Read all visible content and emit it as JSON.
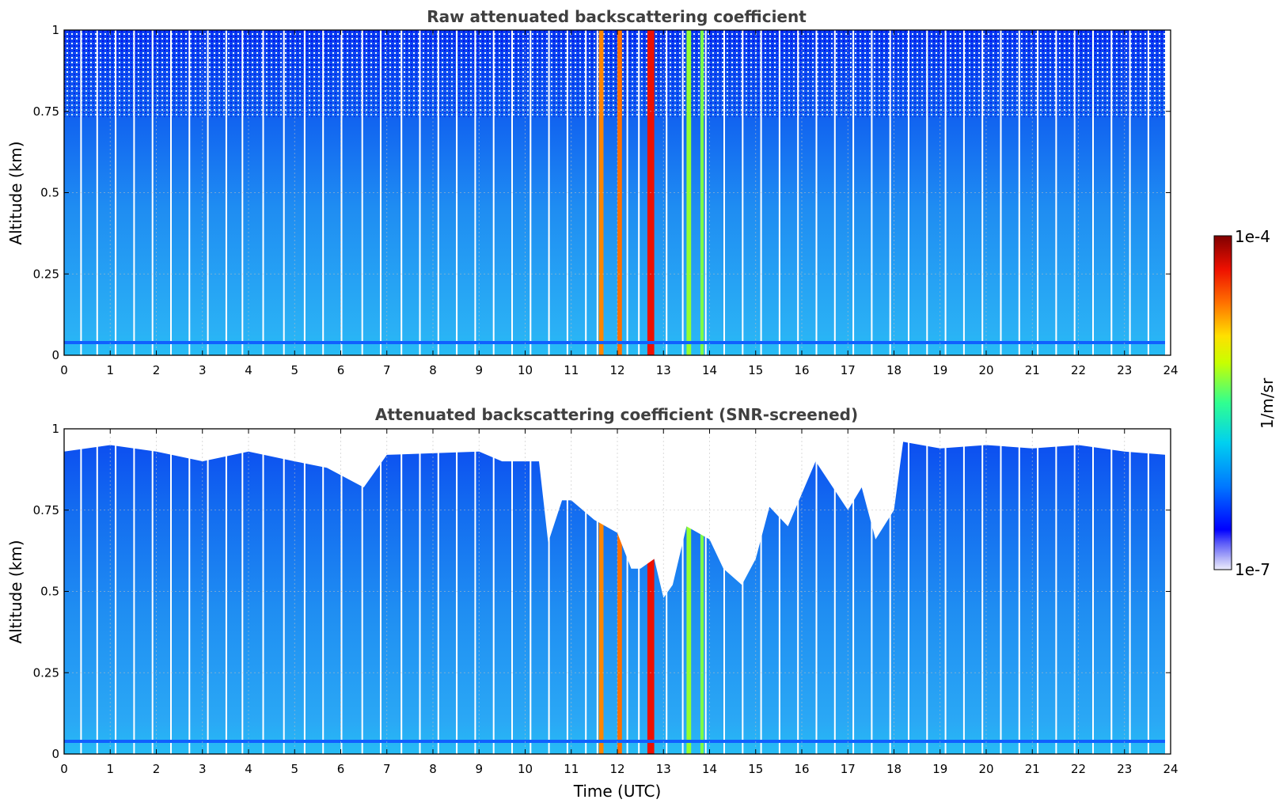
{
  "chart_data": [
    {
      "type": "heatmap",
      "title": "Raw attenuated backscattering coefficient",
      "xlabel": "",
      "ylabel": "Altitude (km)",
      "xlim": [
        0,
        24
      ],
      "ylim": [
        0,
        1
      ],
      "x_ticks": [
        "0",
        "1",
        "2",
        "3",
        "4",
        "5",
        "6",
        "7",
        "8",
        "9",
        "10",
        "11",
        "12",
        "13",
        "14",
        "15",
        "16",
        "17",
        "18",
        "19",
        "20",
        "21",
        "22",
        "23",
        "24"
      ],
      "y_ticks": [
        "0",
        "0.25",
        "0.5",
        "0.75",
        "1"
      ],
      "grid": true,
      "screened": false
    },
    {
      "type": "heatmap",
      "title": "Attenuated backscattering coefficient (SNR-screened)",
      "xlabel": "Time (UTC)",
      "ylabel": "Altitude (km)",
      "xlim": [
        0,
        24
      ],
      "ylim": [
        0,
        1
      ],
      "x_ticks": [
        "0",
        "1",
        "2",
        "3",
        "4",
        "5",
        "6",
        "7",
        "8",
        "9",
        "10",
        "11",
        "12",
        "13",
        "14",
        "15",
        "16",
        "17",
        "18",
        "19",
        "20",
        "21",
        "22",
        "23",
        "24"
      ],
      "y_ticks": [
        "0",
        "0.25",
        "0.5",
        "0.75",
        "1"
      ],
      "grid": true,
      "screened": true,
      "screen_top_km": [
        [
          0,
          0.93
        ],
        [
          1,
          0.95
        ],
        [
          2,
          0.93
        ],
        [
          3,
          0.9
        ],
        [
          4,
          0.93
        ],
        [
          5,
          0.9
        ],
        [
          5.7,
          0.88
        ],
        [
          6.5,
          0.82
        ],
        [
          7,
          0.92
        ],
        [
          9,
          0.93
        ],
        [
          9.5,
          0.9
        ],
        [
          10.3,
          0.9
        ],
        [
          10.5,
          0.65
        ],
        [
          10.8,
          0.78
        ],
        [
          11,
          0.78
        ],
        [
          11.5,
          0.72
        ],
        [
          12,
          0.68
        ],
        [
          12.3,
          0.57
        ],
        [
          12.5,
          0.57
        ],
        [
          12.8,
          0.6
        ],
        [
          13,
          0.48
        ],
        [
          13.2,
          0.52
        ],
        [
          13.5,
          0.7
        ],
        [
          14,
          0.66
        ],
        [
          14.3,
          0.57
        ],
        [
          14.7,
          0.52
        ],
        [
          15,
          0.6
        ],
        [
          15.3,
          0.76
        ],
        [
          15.7,
          0.7
        ],
        [
          16,
          0.8
        ],
        [
          16.3,
          0.9
        ],
        [
          17,
          0.75
        ],
        [
          17.3,
          0.82
        ],
        [
          17.6,
          0.66
        ],
        [
          18,
          0.75
        ],
        [
          18.2,
          0.96
        ],
        [
          19,
          0.94
        ],
        [
          20,
          0.95
        ],
        [
          21,
          0.94
        ],
        [
          22,
          0.95
        ],
        [
          23,
          0.93
        ],
        [
          23.9,
          0.92
        ]
      ]
    }
  ],
  "colorbar": {
    "label": "1/m/sr",
    "max_label": "1e-4",
    "min_label": "1e-7",
    "scale": "log"
  },
  "gap_hours": [
    0.35,
    0.7,
    1.1,
    1.5,
    1.9,
    2.3,
    2.7,
    3.1,
    3.5,
    3.85,
    4.3,
    4.75,
    5.2,
    5.6,
    6.0,
    6.45,
    6.85,
    7.3,
    7.7,
    8.1,
    8.5,
    8.9,
    9.3,
    9.7,
    10.1,
    10.5,
    10.9,
    11.3,
    11.55,
    12.2,
    12.45,
    13.05,
    13.4,
    13.9,
    14.3,
    14.7,
    15.1,
    15.5,
    15.9,
    16.3,
    16.7,
    17.1,
    17.5,
    17.9,
    18.3,
    18.7,
    19.1,
    19.5,
    19.9,
    20.3,
    20.7,
    21.1,
    21.5,
    21.9,
    22.3,
    22.7,
    23.1,
    23.5
  ],
  "highlight_bands": [
    {
      "x0": 11.6,
      "x1": 11.7,
      "level": 0.78
    },
    {
      "x0": 12.0,
      "x1": 12.1,
      "level": 0.8
    },
    {
      "x0": 12.65,
      "x1": 12.8,
      "level": 0.9
    },
    {
      "x0": 13.5,
      "x1": 13.6,
      "level": 0.58
    },
    {
      "x0": 13.8,
      "x1": 13.87,
      "level": 0.56
    }
  ],
  "colors": {
    "background_blue": "#1f8df2",
    "low_level_cyan": "#28c4f5",
    "upper_deep_blue": "#0b3df0",
    "aerosol_line": "#1060ff",
    "grid": "#c0c0c0",
    "axes": "#000000"
  }
}
